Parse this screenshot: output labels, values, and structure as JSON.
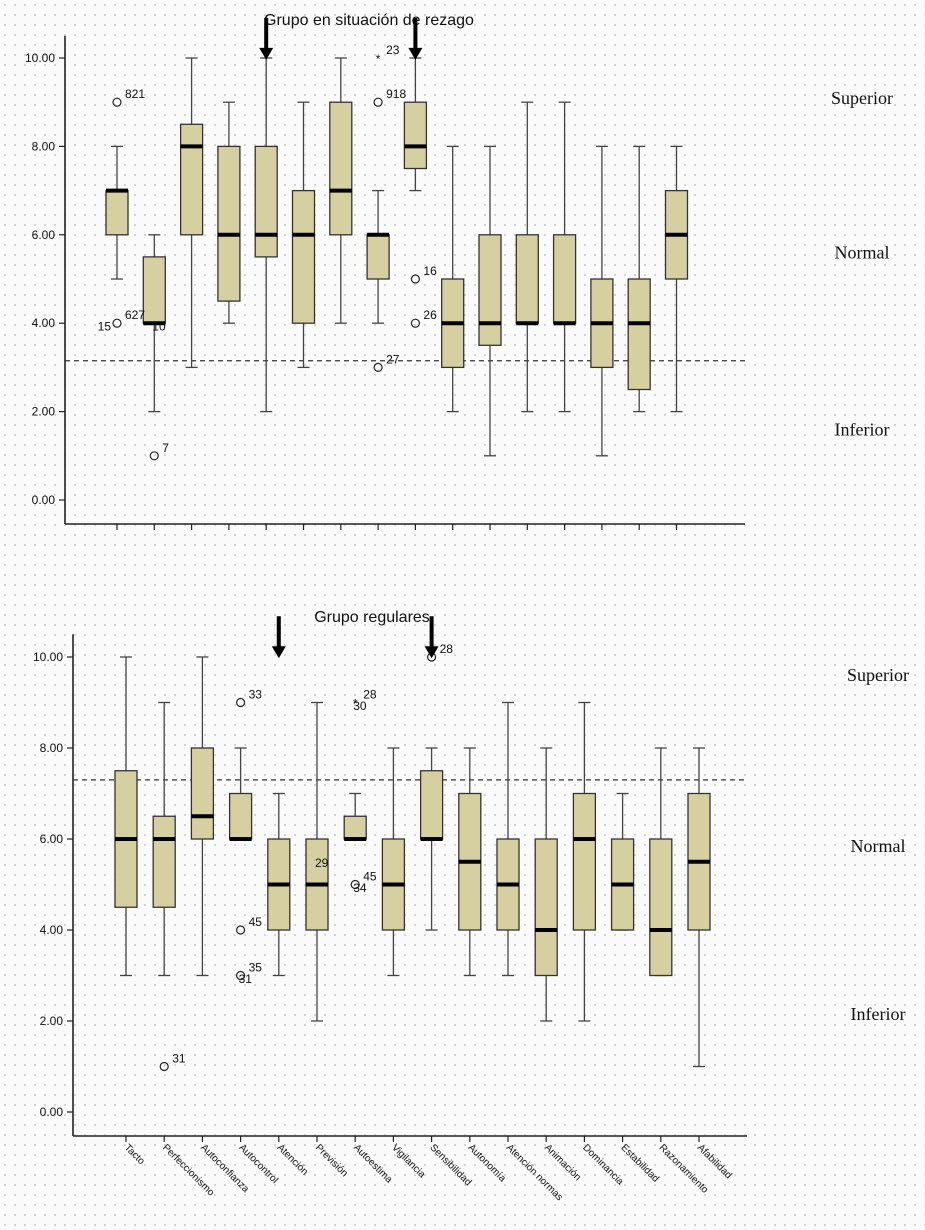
{
  "colors": {
    "box_fill": "#d6d0a0",
    "median": "#000000",
    "stroke": "#333333"
  },
  "chart_data": [
    {
      "type": "box",
      "title": "Grupo en situación de rezago",
      "ylim": [
        0,
        10.5
      ],
      "yticks": [
        "0.00",
        "2.00",
        "4.00",
        "6.00",
        "8.00",
        "10.00"
      ],
      "reference_line": 3.15,
      "zones": [
        {
          "label": "Superior",
          "y": 9.1
        },
        {
          "label": "Normal",
          "y": 5.6
        },
        {
          "label": "Inferior",
          "y": 1.6
        }
      ],
      "arrows_at": [
        4,
        8
      ],
      "boxes": [
        {
          "min": 5,
          "q1": 6,
          "median": 7,
          "q3": 7,
          "max": 8
        },
        {
          "min": 2,
          "q1": 4,
          "median": 4,
          "q3": 5.5,
          "max": 6
        },
        {
          "min": 3,
          "q1": 6,
          "median": 8,
          "q3": 8.5,
          "max": 10
        },
        {
          "min": 4,
          "q1": 4.5,
          "median": 6,
          "q3": 8,
          "max": 9
        },
        {
          "min": 2,
          "q1": 5.5,
          "median": 6,
          "q3": 8,
          "max": 10
        },
        {
          "min": 3,
          "q1": 4,
          "median": 6,
          "q3": 7,
          "max": 9
        },
        {
          "min": 4,
          "q1": 6,
          "median": 7,
          "q3": 9,
          "max": 10
        },
        {
          "min": 4,
          "q1": 5,
          "median": 6,
          "q3": 6,
          "max": 7
        },
        {
          "min": 7,
          "q1": 7.5,
          "median": 8,
          "q3": 9,
          "max": 10
        },
        {
          "min": 2,
          "q1": 3,
          "median": 4,
          "q3": 5,
          "max": 8
        },
        {
          "min": 1,
          "q1": 3.5,
          "median": 4,
          "q3": 6,
          "max": 8
        },
        {
          "min": 2,
          "q1": 4,
          "median": 4,
          "q3": 6,
          "max": 9
        },
        {
          "min": 2,
          "q1": 4,
          "median": 4,
          "q3": 6,
          "max": 9
        },
        {
          "min": 1,
          "q1": 3,
          "median": 4,
          "q3": 5,
          "max": 8
        },
        {
          "min": 2,
          "q1": 2.5,
          "median": 4,
          "q3": 5,
          "max": 8
        },
        {
          "min": 2,
          "q1": 5,
          "median": 6,
          "q3": 7,
          "max": 8
        }
      ],
      "outliers": [
        {
          "box": 0,
          "y": 9,
          "mark": "o",
          "label": "821"
        },
        {
          "box": 0,
          "y": 4,
          "mark": "o",
          "label": "627"
        },
        {
          "box": 0,
          "y": 3.75,
          "mark": "",
          "label": "15"
        },
        {
          "box": 1,
          "y": 3.75,
          "mark": "",
          "label": "10"
        },
        {
          "box": 1,
          "y": 1,
          "mark": "o",
          "label": "7"
        },
        {
          "box": 7,
          "y": 10,
          "mark": "*",
          "label": "23"
        },
        {
          "box": 7,
          "y": 9,
          "mark": "o",
          "label": "918"
        },
        {
          "box": 7,
          "y": 3,
          "mark": "o",
          "label": "27"
        },
        {
          "box": 8,
          "y": 5,
          "mark": "o",
          "label": "16"
        },
        {
          "box": 8,
          "y": 4,
          "mark": "o",
          "label": "26"
        }
      ]
    },
    {
      "type": "box",
      "title": "Grupo regulares",
      "ylim": [
        0,
        10.5
      ],
      "yticks": [
        "0.00",
        "2.00",
        "4.00",
        "6.00",
        "8.00",
        "10.00"
      ],
      "reference_line": 7.3,
      "zones": [
        {
          "label": "Superior",
          "y": 9.6
        },
        {
          "label": "Normal",
          "y": 5.85
        },
        {
          "label": "Inferior",
          "y": 2.15
        }
      ],
      "arrows_at": [
        4,
        8
      ],
      "categories": [
        "Tacto",
        "Perfeccionismo",
        "Autoconfianza",
        "Autocontrol",
        "Atención",
        "Previsión",
        "Autoestima",
        "Vigilancia",
        "Sensibilidad",
        "Autonomía",
        "Atención normas",
        "Animación",
        "Dominancia",
        "Estabilidad",
        "Razonamiento",
        "Afabilidad"
      ],
      "boxes": [
        {
          "min": 3,
          "q1": 4.5,
          "median": 6,
          "q3": 7.5,
          "max": 10
        },
        {
          "min": 3,
          "q1": 4.5,
          "median": 6,
          "q3": 6.5,
          "max": 9
        },
        {
          "min": 3,
          "q1": 6,
          "median": 6.5,
          "q3": 8,
          "max": 10
        },
        {
          "min": 6,
          "q1": 6,
          "median": 6,
          "q3": 7,
          "max": 8
        },
        {
          "min": 3,
          "q1": 4,
          "median": 5,
          "q3": 6,
          "max": 7
        },
        {
          "min": 2,
          "q1": 4,
          "median": 5,
          "q3": 6,
          "max": 9
        },
        {
          "min": 6,
          "q1": 6,
          "median": 6,
          "q3": 6.5,
          "max": 7
        },
        {
          "min": 3,
          "q1": 4,
          "median": 5,
          "q3": 6,
          "max": 8
        },
        {
          "min": 4,
          "q1": 6,
          "median": 6,
          "q3": 7.5,
          "max": 8
        },
        {
          "min": 3,
          "q1": 4,
          "median": 5.5,
          "q3": 7,
          "max": 8
        },
        {
          "min": 3,
          "q1": 4,
          "median": 5,
          "q3": 6,
          "max": 9
        },
        {
          "min": 2,
          "q1": 3,
          "median": 4,
          "q3": 6,
          "max": 8
        },
        {
          "min": 2,
          "q1": 4,
          "median": 6,
          "q3": 7,
          "max": 9
        },
        {
          "min": 4,
          "q1": 4,
          "median": 5,
          "q3": 6,
          "max": 7
        },
        {
          "min": 3,
          "q1": 3,
          "median": 4,
          "q3": 6,
          "max": 8
        },
        {
          "min": 1,
          "q1": 4,
          "median": 5.5,
          "q3": 7,
          "max": 8
        }
      ],
      "outliers": [
        {
          "box": 1,
          "y": 1,
          "mark": "o",
          "label": "31"
        },
        {
          "box": 3,
          "y": 9,
          "mark": "o",
          "label": "33"
        },
        {
          "box": 3,
          "y": 4,
          "mark": "o",
          "label": "45"
        },
        {
          "box": 3,
          "y": 3,
          "mark": "o",
          "label": "35"
        },
        {
          "box": 3,
          "y": 2.75,
          "mark": "",
          "label": "31"
        },
        {
          "box": 5,
          "y": 5.3,
          "mark": "",
          "label": "29"
        },
        {
          "box": 6,
          "y": 9,
          "mark": "*",
          "label": "28"
        },
        {
          "box": 6,
          "y": 8.75,
          "mark": "",
          "label": "30"
        },
        {
          "box": 6,
          "y": 5,
          "mark": "o",
          "label": "45"
        },
        {
          "box": 6,
          "y": 4.75,
          "mark": "",
          "label": "34"
        },
        {
          "box": 8,
          "y": 10,
          "mark": "o",
          "label": "28"
        }
      ]
    }
  ]
}
